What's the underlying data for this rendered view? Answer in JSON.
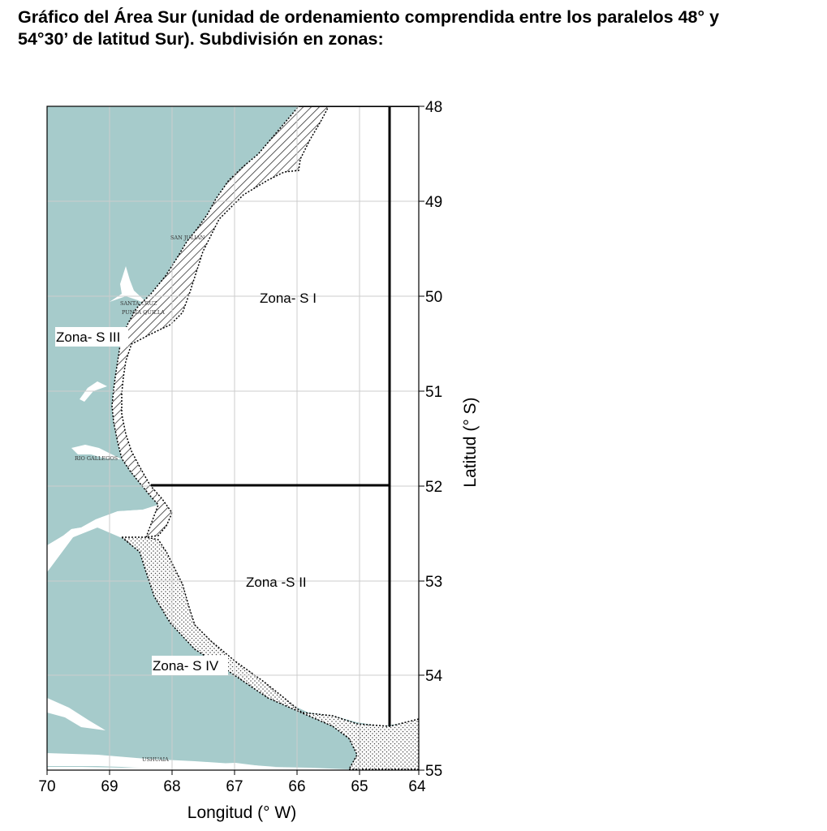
{
  "title": {
    "line1": "Gráfico del Área Sur (unidad de ordenamiento comprendida entre los paralelos 48° y",
    "line2": "54°30’ de latitud Sur). Subdivisión en zonas:"
  },
  "map": {
    "x_axis": {
      "label": "Longitud (° W)",
      "ticks": [
        "70",
        "69",
        "68",
        "67",
        "66",
        "65",
        "64"
      ]
    },
    "y_axis": {
      "label": "Latitud (° S)",
      "ticks": [
        "48",
        "49",
        "50",
        "51",
        "52",
        "53",
        "54",
        "55"
      ]
    },
    "zones": [
      "Zona- S I",
      "Zona -S II",
      "Zona- S III",
      "Zona- S IV"
    ],
    "places": [
      "SAN JULIAN",
      "SANTA CRUZ",
      "PUNTA QUILLA",
      "RIO GALLEGOS",
      "USHUAIA"
    ],
    "colors": {
      "land": "#a6cbcb",
      "sea": "#ffffff",
      "grid": "#cccccc",
      "boundary": "#000000"
    }
  }
}
